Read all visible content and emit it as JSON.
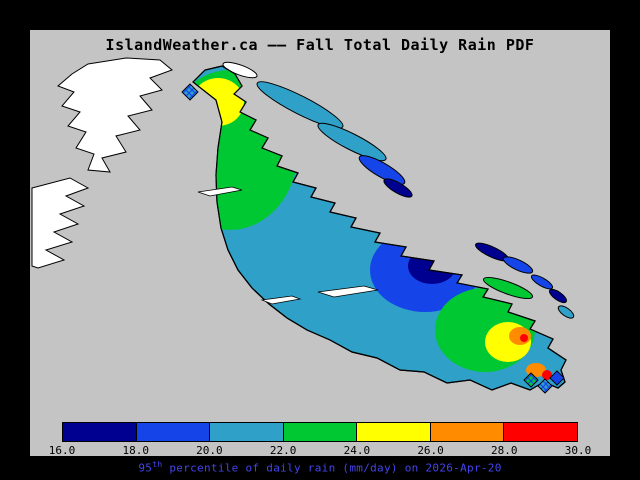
{
  "title": "IslandWeather.ca —— Fall Total Daily Rain PDF",
  "caption": {
    "base": "95",
    "sup": "th",
    "rest": " percentile of daily rain (mm/day) on 2026-Apr-20",
    "color": "#4444ee"
  },
  "colorbar": {
    "labels": [
      "16.0",
      "18.0",
      "20.0",
      "22.0",
      "24.0",
      "26.0",
      "28.0",
      "30.0"
    ],
    "colors": [
      "#000090",
      "#1545e8",
      "#2fa0c8",
      "#00c832",
      "#ffff00",
      "#ff8c00",
      "#ff0000"
    ],
    "min": 16.0,
    "max": 30.0,
    "step": 2.0
  },
  "map": {
    "sea_color": "#c4c4c4",
    "no_data_land_color": "#ffffff",
    "outline_color": "#000000",
    "base_island_value_range": "20.0-22.0",
    "regions": [
      {
        "area": "north",
        "value_range": "22.0-26.0"
      },
      {
        "area": "east-coast",
        "value_range": "16.0-20.0"
      },
      {
        "area": "southeast",
        "value_range": "22.0-30.0"
      },
      {
        "area": "south-tip",
        "value_range": "26.0-30.0, hatched"
      }
    ]
  },
  "window": {
    "background": "#000000",
    "panel_background": "#c4c4c4"
  }
}
